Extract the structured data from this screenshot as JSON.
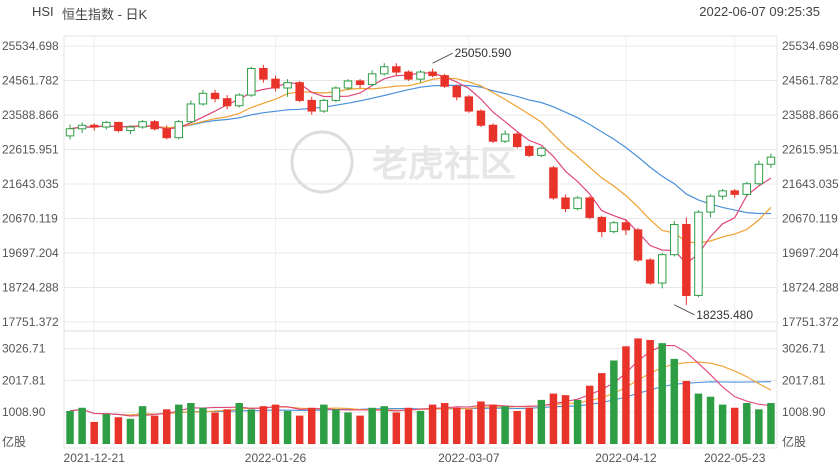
{
  "header": {
    "symbol": "HSI",
    "title": "恒生指数 - 日K",
    "datetime": "2022-06-07 09:25:35"
  },
  "watermark": "老虎社区",
  "colors": {
    "up": "#2e9e45",
    "down": "#e8332a",
    "ma5": "#e0457b",
    "ma10": "#f0a030",
    "ma20": "#4a90d9",
    "grid": "#e8e8e8",
    "text": "#555555"
  },
  "chart_data": [
    {
      "type": "candlestick",
      "title": "恒生指数 - 日K",
      "y_ticks": [
        "25534.698",
        "24561.782",
        "23588.866",
        "22615.951",
        "21643.035",
        "20670.119",
        "19697.204",
        "18724.288",
        "17751.372"
      ],
      "ylim": [
        17751.372,
        25534.698
      ],
      "x_ticks": [
        "2021-12-21",
        "2022-01-26",
        "2022-03-07",
        "2022-04-12",
        "2022-05-23"
      ],
      "annotations": [
        {
          "label": "25050.590",
          "value": 25050.59,
          "index": 30
        },
        {
          "label": "18235.480",
          "value": 18235.48,
          "index": 50
        }
      ],
      "ohlc": [
        [
          23000,
          23320,
          22900,
          23200
        ],
        [
          23200,
          23380,
          23080,
          23300
        ],
        [
          23300,
          23350,
          23150,
          23250
        ],
        [
          23250,
          23420,
          23180,
          23380
        ],
        [
          23380,
          23400,
          23100,
          23150
        ],
        [
          23150,
          23300,
          23050,
          23250
        ],
        [
          23250,
          23450,
          23200,
          23400
        ],
        [
          23400,
          23450,
          23150,
          23200
        ],
        [
          23200,
          23300,
          22900,
          22950
        ],
        [
          22950,
          23450,
          22900,
          23400
        ],
        [
          23400,
          24000,
          23350,
          23900
        ],
        [
          23900,
          24300,
          23850,
          24200
        ],
        [
          24200,
          24300,
          23950,
          24050
        ],
        [
          24050,
          24150,
          23750,
          23850
        ],
        [
          23850,
          24200,
          23800,
          24150
        ],
        [
          24150,
          24950,
          24100,
          24900
        ],
        [
          24900,
          25000,
          24500,
          24600
        ],
        [
          24600,
          24700,
          24250,
          24350
        ],
        [
          24350,
          24600,
          24100,
          24500
        ],
        [
          24500,
          24550,
          23950,
          24000
        ],
        [
          24000,
          24100,
          23600,
          23700
        ],
        [
          23700,
          24050,
          23650,
          24000
        ],
        [
          24000,
          24400,
          23950,
          24350
        ],
        [
          24350,
          24600,
          24300,
          24550
        ],
        [
          24550,
          24600,
          24350,
          24450
        ],
        [
          24450,
          24850,
          24400,
          24750
        ],
        [
          24750,
          25050,
          24700,
          24950
        ],
        [
          24950,
          25050,
          24700,
          24800
        ],
        [
          24800,
          24850,
          24550,
          24600
        ],
        [
          24600,
          24850,
          24500,
          24800
        ],
        [
          24800,
          24900,
          24650,
          24700
        ],
        [
          24700,
          24750,
          24350,
          24400
        ],
        [
          24400,
          24450,
          24000,
          24100
        ],
        [
          24100,
          24150,
          23650,
          23700
        ],
        [
          23700,
          23750,
          23250,
          23300
        ],
        [
          23300,
          23350,
          22800,
          22850
        ],
        [
          22850,
          23150,
          22800,
          23050
        ],
        [
          23050,
          23100,
          22650,
          22700
        ],
        [
          22700,
          22750,
          22400,
          22450
        ],
        [
          22450,
          22700,
          22400,
          22650
        ],
        [
          22100,
          22150,
          21200,
          21250
        ],
        [
          21250,
          21350,
          20850,
          20950
        ],
        [
          20950,
          21300,
          20900,
          21250
        ],
        [
          21250,
          21300,
          20650,
          20700
        ],
        [
          20700,
          20750,
          20150,
          20300
        ],
        [
          20300,
          20600,
          20250,
          20550
        ],
        [
          20550,
          20650,
          20200,
          20350
        ],
        [
          20350,
          20400,
          19450,
          19500
        ],
        [
          19500,
          19550,
          18800,
          18850
        ],
        [
          18850,
          19700,
          18700,
          19650
        ],
        [
          19650,
          20600,
          19600,
          20500
        ],
        [
          20500,
          20700,
          18235.48,
          18500
        ],
        [
          18500,
          20900,
          18450,
          20850
        ],
        [
          20850,
          21350,
          20700,
          21300
        ],
        [
          21300,
          21500,
          21200,
          21450
        ],
        [
          21450,
          21500,
          21250,
          21350
        ],
        [
          21350,
          21700,
          21300,
          21650
        ],
        [
          21650,
          22300,
          21600,
          22200
        ],
        [
          22200,
          22500,
          22100,
          22400
        ]
      ],
      "volume_ticks": [
        "3026.71",
        "2017.81",
        "1008.90"
      ],
      "volume_unit": "亿股",
      "volume_ylim": [
        0,
        3300
      ],
      "volume": [
        1050,
        1150,
        700,
        950,
        850,
        800,
        1200,
        900,
        1100,
        1250,
        1300,
        1150,
        1000,
        1100,
        1300,
        1100,
        1200,
        1250,
        1050,
        900,
        1150,
        1250,
        1100,
        1000,
        900,
        1150,
        1200,
        1000,
        1150,
        1050,
        1250,
        1300,
        1150,
        1100,
        1350,
        1250,
        1200,
        1050,
        1150,
        1400,
        1600,
        1550,
        1400,
        1850,
        2250,
        2650,
        3100,
        3350,
        3300,
        3200,
        2700,
        2000,
        1600,
        1500,
        1250,
        1150,
        1300,
        1100,
        1300
      ]
    }
  ]
}
